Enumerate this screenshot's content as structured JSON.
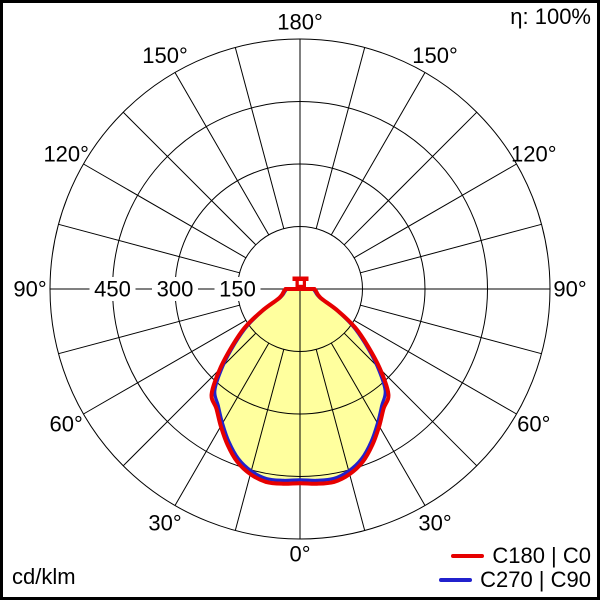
{
  "header": {
    "efficiency_label": "η: 100%"
  },
  "footer": {
    "unit_label": "cd/klm"
  },
  "legend": {
    "items": [
      {
        "label": "C180 | C0",
        "color": "#e60000"
      },
      {
        "label": "C270 | C90",
        "color": "#2121cd"
      }
    ]
  },
  "chart_data": {
    "type": "polar",
    "description": "Luminous intensity distribution curve of a luminaire (polar diagram, 0° at nadir)",
    "unit": "cd/klm",
    "efficiency_percent": 100,
    "angle_labels": [
      "0°",
      "30°",
      "60°",
      "90°",
      "120°",
      "150°",
      "180°"
    ],
    "angle_grid_step_deg": 15,
    "ring_values": [
      150,
      300,
      450,
      600
    ],
    "ring_axis_label_values": [
      450,
      300,
      150
    ],
    "rmax": 600,
    "grid_color": "#000000",
    "fill_color": "#ffff9e",
    "marker_color": "#e60000",
    "gamma_deg": [
      0,
      5,
      10,
      15,
      20,
      25,
      30,
      35,
      40,
      45,
      50,
      55,
      60,
      65,
      70,
      75,
      80,
      85,
      90
    ],
    "series": [
      {
        "name": "C180 | C0",
        "color": "#e60000",
        "stroke_width": 4,
        "values": [
          466,
          469,
          470,
          460,
          441,
          412,
          380,
          350,
          330,
          272,
          212,
          162,
          106,
          60,
          48,
          43,
          40,
          37,
          35
        ]
      },
      {
        "name": "C270 | C90",
        "color": "#2121cd",
        "stroke_width": 3.2,
        "values": [
          458,
          461,
          462,
          452,
          433,
          404,
          372,
          342,
          318,
          262,
          204,
          154,
          100,
          56,
          45,
          40,
          37,
          34,
          32
        ]
      }
    ]
  }
}
